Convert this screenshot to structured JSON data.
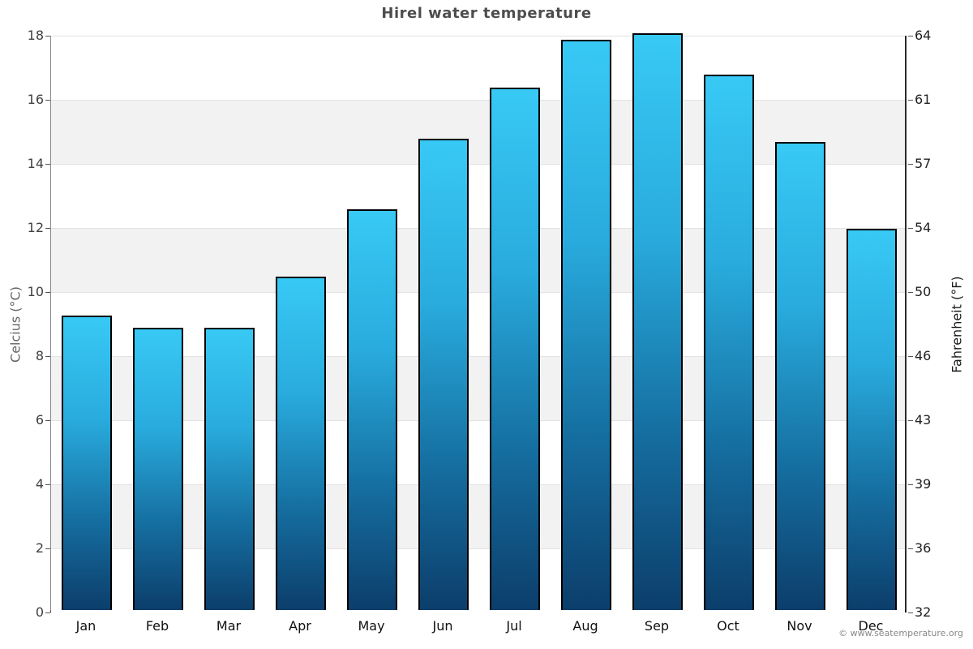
{
  "chart": {
    "title": "Hirel water temperature",
    "ylabel_left": "Celcius (°C)",
    "ylabel_right": "Fahrenheit (°F)",
    "copyright": "© www.seatemperature.org"
  },
  "chart_data": {
    "type": "bar",
    "title": "Hirel water temperature",
    "categories": [
      "Jan",
      "Feb",
      "Mar",
      "Apr",
      "May",
      "Jun",
      "Jul",
      "Aug",
      "Sep",
      "Oct",
      "Nov",
      "Dec"
    ],
    "values": [
      9.2,
      8.8,
      8.8,
      10.4,
      12.5,
      14.7,
      16.3,
      17.8,
      18.0,
      16.7,
      14.6,
      11.9
    ],
    "xlabel": "",
    "ylabel_left": "Celcius (°C)",
    "ylabel_right": "Fahrenheit (°F)",
    "ylim_celsius": [
      0,
      18
    ],
    "yticks_celsius": [
      0,
      2,
      4,
      6,
      8,
      10,
      12,
      14,
      16,
      18
    ],
    "yticks_fahrenheit": [
      32,
      36,
      39,
      43,
      46,
      50,
      54,
      57,
      61,
      64
    ],
    "legend": "none",
    "grid": "alternating horizontal bands every 2°C",
    "colors": {
      "bar_gradient": [
        "#38c9f5",
        "#29abdd",
        "#156d9f",
        "#0c3e6b"
      ],
      "bar_gradient_stops": [
        0,
        35,
        70,
        100
      ],
      "bar_border": "#000000",
      "band_gray": "#f2f2f2",
      "band_white": "#ffffff",
      "gridline": "#e2e2e2",
      "title_text": "#4d4d4d",
      "tick_text": "#404040",
      "month_text": "#111111",
      "copyright_text": "#888888"
    }
  }
}
